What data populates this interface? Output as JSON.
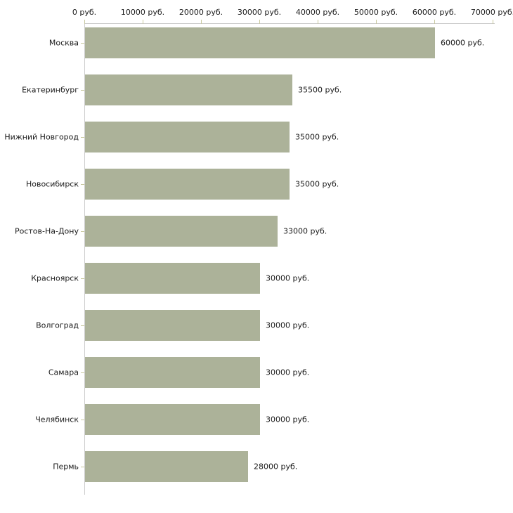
{
  "chart_data": {
    "type": "bar",
    "orientation": "horizontal",
    "title": "",
    "xlabel": "",
    "ylabel": "",
    "unit": "руб.",
    "categories": [
      "Москва",
      "Екатеринбург",
      "Нижний Новгород",
      "Новосибирск",
      "Ростов-На-Дону",
      "Красноярск",
      "Волгоград",
      "Самара",
      "Челябинск",
      "Пермь"
    ],
    "values": [
      60000,
      35500,
      35000,
      35000,
      33000,
      30000,
      30000,
      30000,
      30000,
      28000
    ],
    "value_labels": [
      "60000 руб.",
      "35500 руб.",
      "35000 руб.",
      "35000 руб.",
      "33000 руб.",
      "30000 руб.",
      "30000 руб.",
      "30000 руб.",
      "30000 руб.",
      "28000 руб."
    ],
    "x_ticks": [
      0,
      10000,
      20000,
      30000,
      40000,
      50000,
      60000,
      70000
    ],
    "x_tick_labels": [
      "0 руб.",
      "10000 руб.",
      "20000 руб.",
      "30000 руб.",
      "40000 руб.",
      "50000 руб.",
      "60000 руб.",
      "70000 руб."
    ],
    "xlim": [
      0,
      70000
    ],
    "grid": false,
    "legend": null,
    "colors": {
      "bar": "#acb299",
      "axis_line": "#cccccc",
      "tick_mark": "#c8c89e",
      "text": "#1a1a1a",
      "background": "#ffffff"
    }
  }
}
